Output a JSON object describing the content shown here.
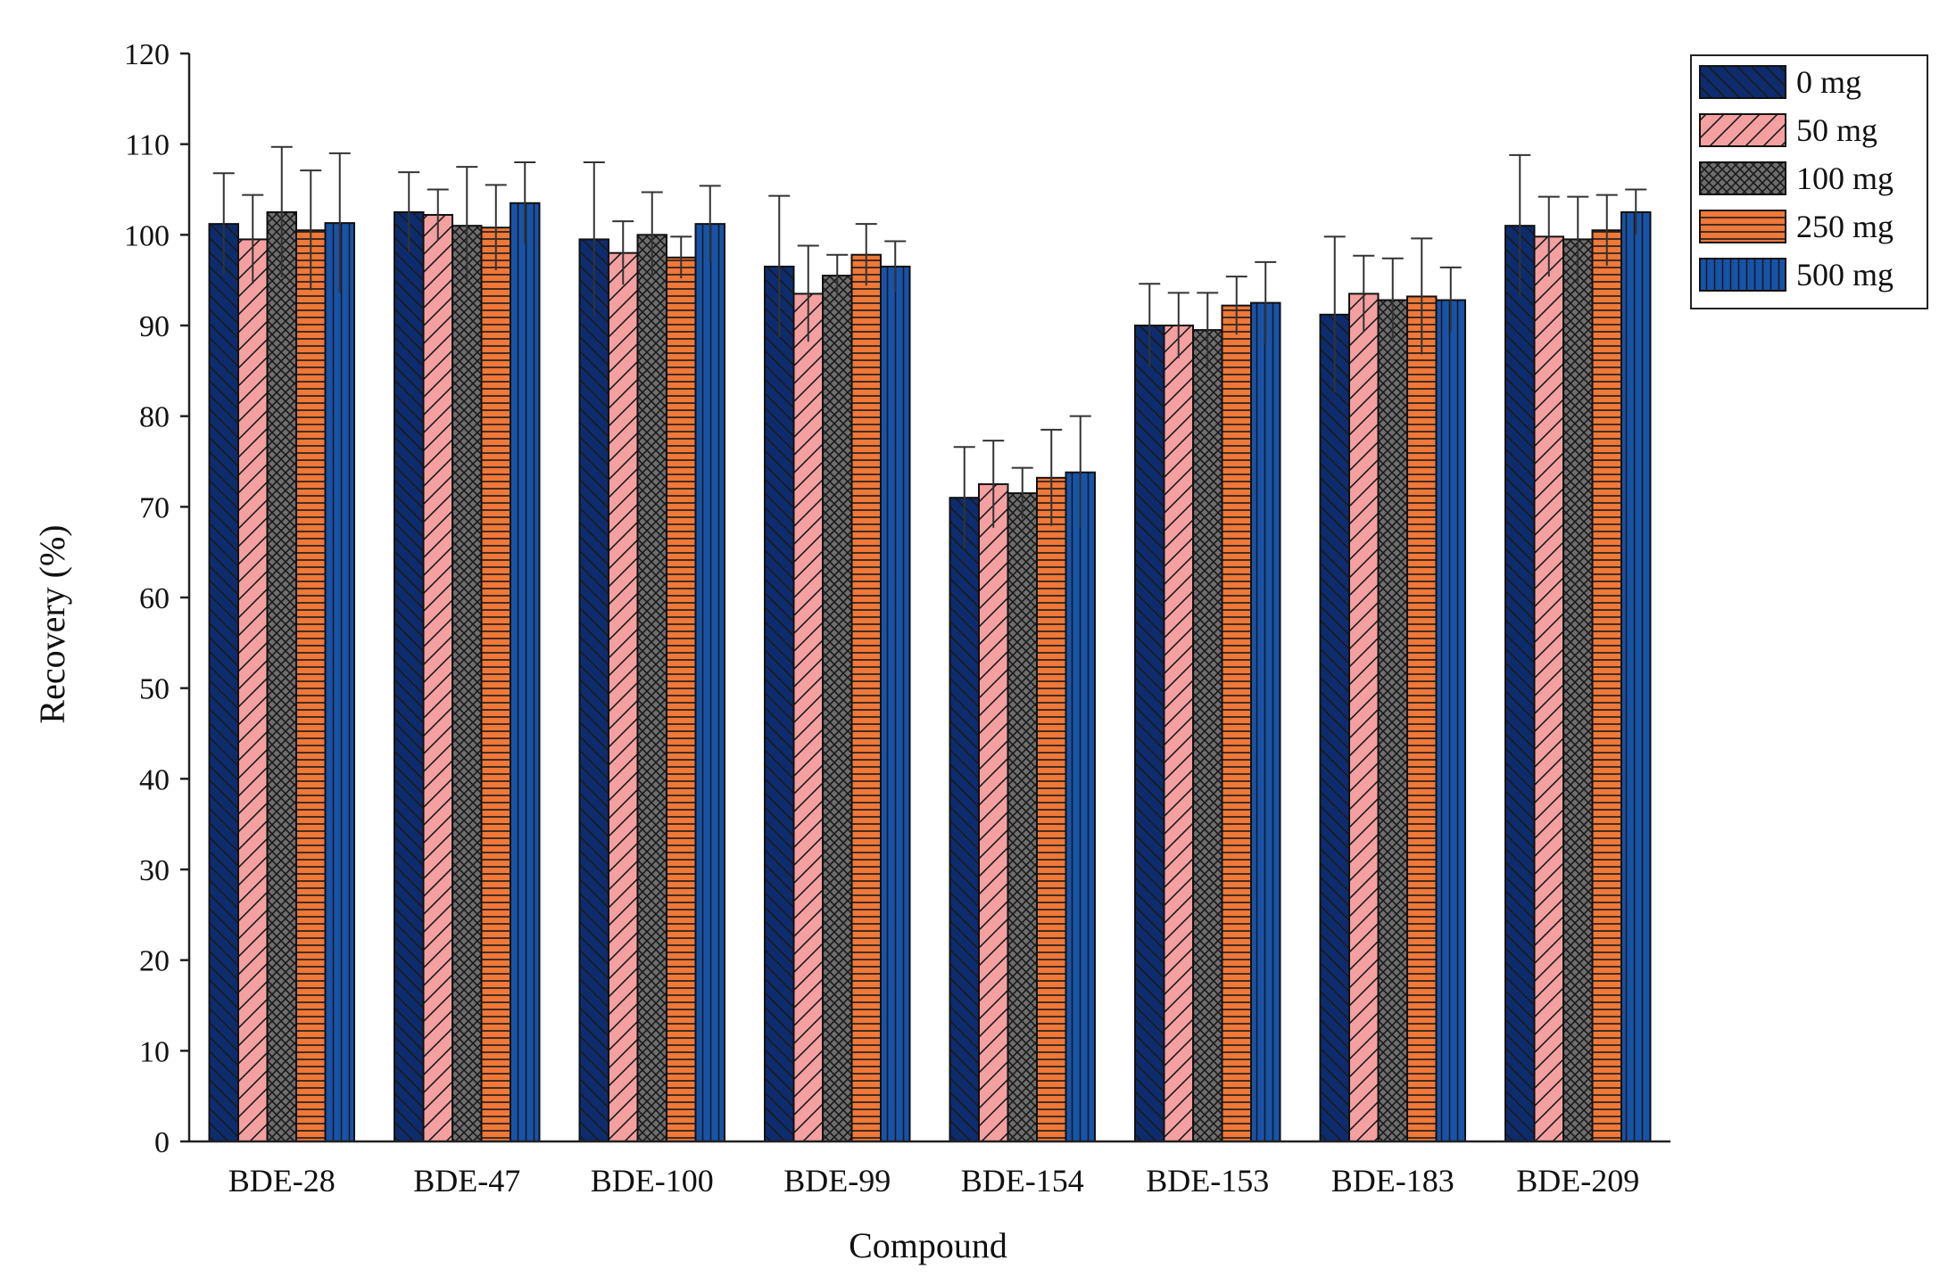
{
  "chart_data": {
    "type": "bar",
    "title": "",
    "xlabel": "Compound",
    "ylabel": "Recovery (%)",
    "ylim": [
      0,
      120
    ],
    "yticks": [
      0,
      10,
      20,
      30,
      40,
      50,
      60,
      70,
      80,
      90,
      100,
      110,
      120
    ],
    "legend_position": "top-right",
    "grid": false,
    "categories": [
      "BDE-28",
      "BDE-47",
      "BDE-100",
      "BDE-99",
      "BDE-154",
      "BDE-153",
      "BDE-183",
      "BDE-209"
    ],
    "series": [
      {
        "name": "0 mg",
        "color": "#0d2c6e",
        "pattern": "backslash-hatch",
        "values": [
          101.2,
          102.5,
          99.5,
          96.5,
          71.0,
          90.0,
          91.2,
          101.0
        ],
        "errors": [
          5.6,
          4.4,
          8.5,
          7.8,
          5.6,
          4.6,
          8.6,
          7.8
        ]
      },
      {
        "name": "50 mg",
        "color": "#f4a0a0",
        "pattern": "slash-hatch",
        "values": [
          99.5,
          102.2,
          98.0,
          93.5,
          72.5,
          90.0,
          93.5,
          99.8
        ],
        "errors": [
          4.9,
          2.8,
          3.5,
          5.3,
          4.8,
          3.6,
          4.2,
          4.4
        ]
      },
      {
        "name": "100 mg",
        "color": "#6e6e6e",
        "pattern": "crosshatch",
        "values": [
          102.5,
          101.0,
          100.0,
          95.5,
          71.5,
          89.5,
          92.8,
          99.5
        ],
        "errors": [
          7.2,
          6.5,
          4.7,
          2.3,
          2.8,
          4.1,
          4.6,
          4.7
        ]
      },
      {
        "name": "250 mg",
        "color": "#f07838",
        "pattern": "horizontal-lines",
        "values": [
          100.5,
          100.8,
          97.5,
          97.8,
          73.2,
          92.2,
          93.2,
          100.5
        ],
        "errors": [
          6.6,
          4.7,
          2.3,
          3.4,
          5.3,
          3.2,
          6.4,
          3.9
        ]
      },
      {
        "name": "500 mg",
        "color": "#1753a8",
        "pattern": "vertical-lines",
        "values": [
          101.3,
          103.5,
          101.2,
          96.5,
          73.8,
          92.5,
          92.8,
          102.5
        ],
        "errors": [
          7.7,
          4.5,
          4.2,
          2.8,
          6.2,
          4.5,
          3.6,
          2.5
        ]
      }
    ]
  }
}
